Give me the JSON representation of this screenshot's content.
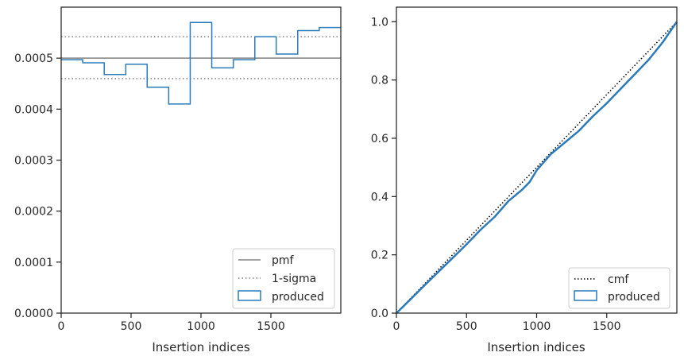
{
  "chart_data": [
    {
      "type": "step",
      "xlabel": "Insertion indices",
      "ylabel": "",
      "xlim": [
        0,
        2000
      ],
      "ylim": [
        0,
        0.0006
      ],
      "xticks": [
        0,
        500,
        1000,
        1500
      ],
      "yticks": [
        "0.0000",
        "0.0001",
        "0.0002",
        "0.0003",
        "0.0004",
        "0.0005"
      ],
      "ytick_values": [
        0,
        0.0001,
        0.0002,
        0.0003,
        0.0004,
        0.0005
      ],
      "pmf": 0.0005,
      "sigma_band": [
        0.00046,
        0.000542
      ],
      "bin_edges": [
        0,
        154,
        308,
        462,
        615,
        769,
        923,
        1077,
        1231,
        1385,
        1538,
        1692,
        1846,
        2000
      ],
      "produced": [
        0.000497,
        0.000491,
        0.000468,
        0.000488,
        0.000443,
        0.00041,
        0.00057,
        0.000481,
        0.000497,
        0.000542,
        0.000508,
        0.000554,
        0.00056
      ],
      "legend": {
        "position": "lower-right",
        "entries": [
          "pmf",
          "1-sigma",
          "produced"
        ]
      },
      "colors": {
        "pmf": "#808080",
        "sigma": "#808080",
        "produced": "#2b7bba"
      }
    },
    {
      "type": "line",
      "xlabel": "Insertion indices",
      "ylabel": "",
      "xlim": [
        0,
        2000
      ],
      "ylim": [
        0,
        1.05
      ],
      "xticks": [
        0,
        500,
        1000,
        1500
      ],
      "yticks": [
        "0.0",
        "0.2",
        "0.4",
        "0.6",
        "0.8",
        "1.0"
      ],
      "ytick_values": [
        0,
        0.2,
        0.4,
        0.6,
        0.8,
        1.0
      ],
      "cmf": {
        "x": [
          0,
          2000
        ],
        "y": [
          0,
          1
        ]
      },
      "produced": {
        "x": [
          0,
          100,
          200,
          300,
          400,
          500,
          600,
          700,
          800,
          900,
          950,
          1000,
          1100,
          1200,
          1300,
          1400,
          1500,
          1600,
          1700,
          1800,
          1900,
          2000
        ],
        "y": [
          0,
          0.047,
          0.095,
          0.142,
          0.189,
          0.236,
          0.286,
          0.33,
          0.385,
          0.425,
          0.45,
          0.49,
          0.545,
          0.585,
          0.625,
          0.675,
          0.72,
          0.77,
          0.82,
          0.87,
          0.93,
          1.0
        ]
      },
      "legend": {
        "position": "lower-right",
        "entries": [
          "cmf",
          "produced"
        ]
      },
      "colors": {
        "cmf": "#000000",
        "produced": "#2b7bba"
      }
    }
  ]
}
